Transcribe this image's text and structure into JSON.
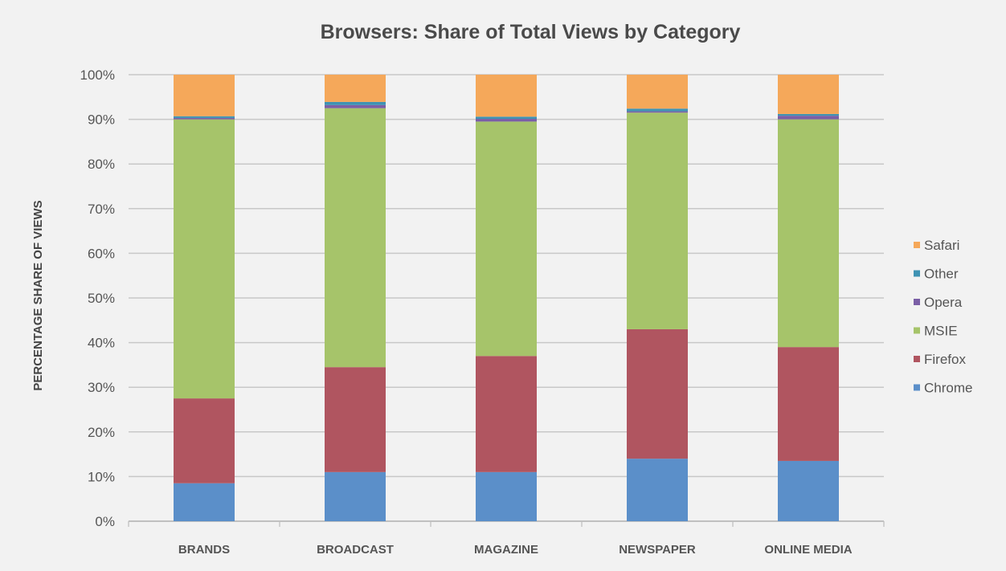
{
  "chart_data": {
    "type": "bar",
    "stacked": true,
    "title": "Browsers: Share of Total Views by Category",
    "xlabel": "",
    "ylabel": "PERCENTAGE SHARE OF VIEWS",
    "ylim": [
      0,
      100
    ],
    "yticks": [
      "0%",
      "10%",
      "20%",
      "30%",
      "40%",
      "50%",
      "60%",
      "70%",
      "80%",
      "90%",
      "100%"
    ],
    "grid": true,
    "legend_position": "right",
    "categories": [
      "BRANDS",
      "BROADCAST",
      "MAGAZINE",
      "NEWSPAPER",
      "ONLINE MEDIA"
    ],
    "series": [
      {
        "name": "Chrome",
        "color": "#5b8fc9",
        "values": [
          8.5,
          11,
          11,
          14,
          13.5
        ]
      },
      {
        "name": "Firefox",
        "color": "#b05560",
        "values": [
          19,
          23.5,
          26,
          29,
          25.5
        ]
      },
      {
        "name": "MSIE",
        "color": "#a6c46a",
        "values": [
          62.5,
          58,
          52.5,
          48.5,
          51
        ]
      },
      {
        "name": "Opera",
        "color": "#7b5fa6",
        "values": [
          0.3,
          0.7,
          0.6,
          0.3,
          0.8
        ]
      },
      {
        "name": "Other",
        "color": "#3f93b3",
        "values": [
          0.4,
          0.7,
          0.5,
          0.6,
          0.4
        ]
      },
      {
        "name": "Safari",
        "color": "#f5a85a",
        "values": [
          9.3,
          6.1,
          9.4,
          7.6,
          8.8
        ]
      }
    ]
  }
}
